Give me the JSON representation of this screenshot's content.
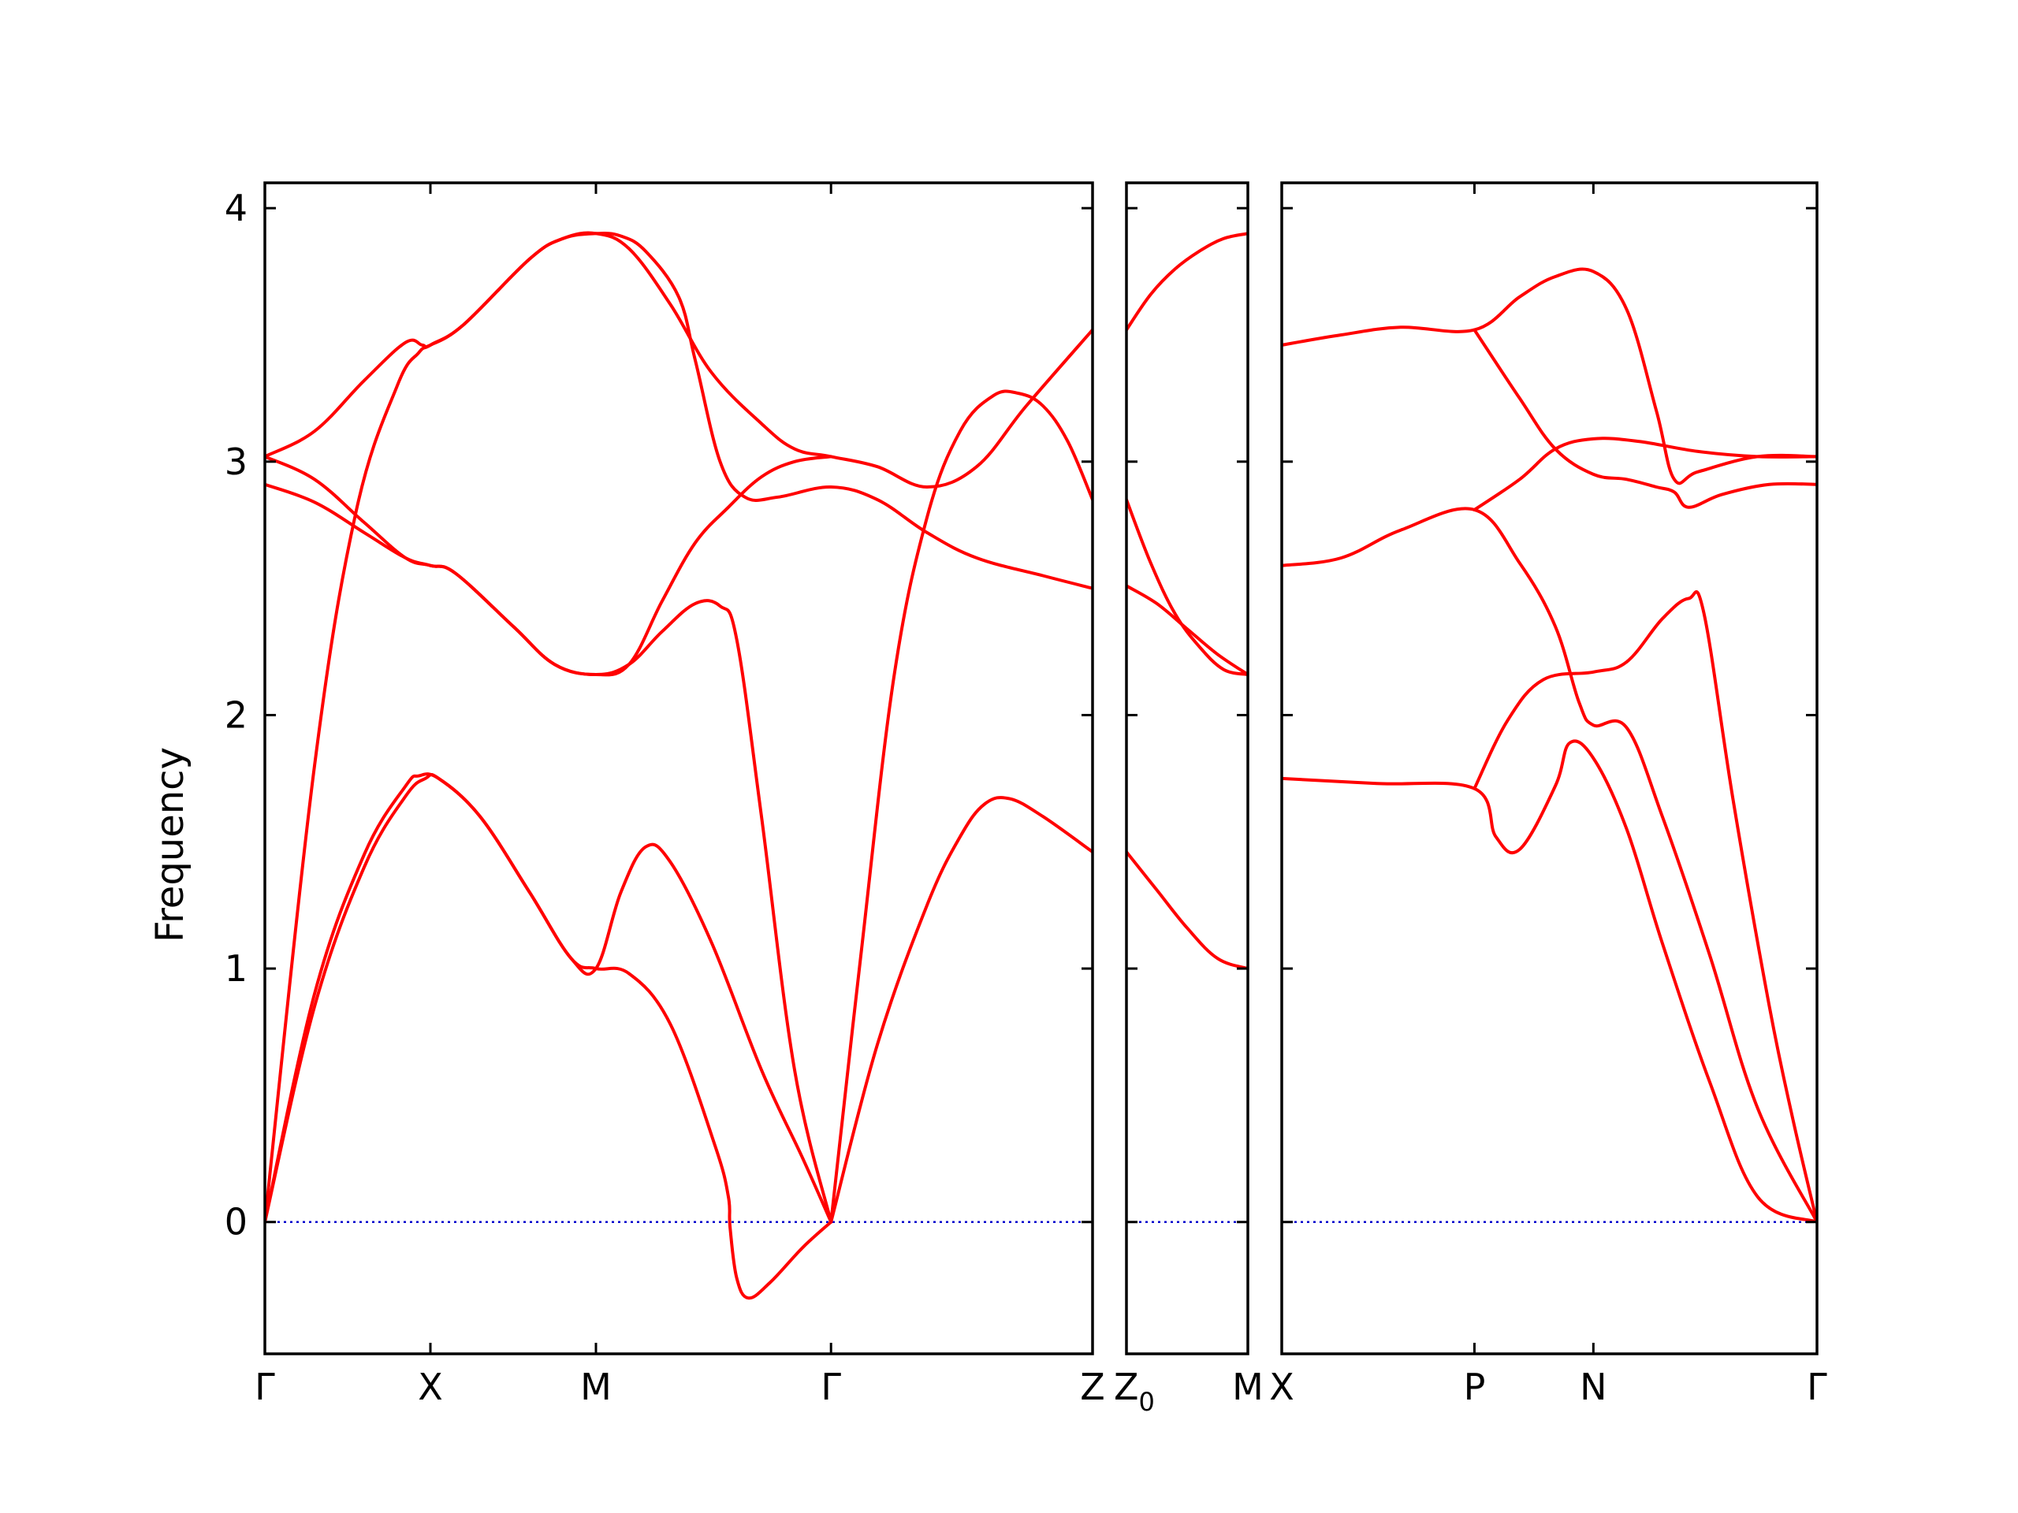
{
  "chart_data": {
    "type": "line",
    "ylabel": "Frequency",
    "ylim": [
      -0.52,
      4.1
    ],
    "yticks": [
      0,
      1,
      2,
      3,
      4
    ],
    "colors": {
      "bands": "#ff0000",
      "zero_line": "#0000cc",
      "frame": "#000000"
    },
    "panels": [
      {
        "id": "panel-1",
        "x_range": [
          0,
          5
        ],
        "xticks": [
          {
            "x": 0,
            "label": "Γ"
          },
          {
            "x": 1,
            "label": "X"
          },
          {
            "x": 2,
            "label": "M"
          },
          {
            "x": 3.42,
            "label": "Γ"
          },
          {
            "x": 5,
            "label": "Z"
          }
        ],
        "bands": [
          {
            "name": "",
            "points": [
              [
                0,
                0
              ],
              [
                0.3,
                0.85
              ],
              [
                0.6,
                1.4
              ],
              [
                0.85,
                1.68
              ],
              [
                0.97,
                1.75
              ],
              [
                1.05,
                1.75
              ],
              [
                1.3,
                1.6
              ],
              [
                1.6,
                1.3
              ],
              [
                1.85,
                1.04
              ],
              [
                2.0,
                1.0
              ],
              [
                2.2,
                0.98
              ],
              [
                2.45,
                0.78
              ],
              [
                2.72,
                0.3
              ],
              [
                2.8,
                0.1
              ],
              [
                2.81,
                -0.02
              ],
              [
                2.85,
                -0.22
              ],
              [
                2.92,
                -0.3
              ],
              [
                3.05,
                -0.24
              ],
              [
                3.25,
                -0.1
              ],
              [
                3.42,
                0
              ]
            ]
          },
          {
            "name": "",
            "points": [
              [
                0,
                0
              ],
              [
                0.3,
                0.9
              ],
              [
                0.6,
                1.45
              ],
              [
                0.85,
                1.72
              ],
              [
                0.93,
                1.76
              ],
              [
                1.05,
                1.75
              ],
              [
                1.3,
                1.6
              ],
              [
                1.6,
                1.3
              ],
              [
                1.85,
                1.04
              ],
              [
                2.0,
                1.0
              ],
              [
                2.15,
                1.3
              ],
              [
                2.3,
                1.48
              ],
              [
                2.45,
                1.42
              ],
              [
                2.7,
                1.1
              ],
              [
                3.0,
                0.6
              ],
              [
                3.25,
                0.25
              ],
              [
                3.42,
                0
              ]
            ]
          },
          {
            "name": "",
            "points": [
              [
                3.42,
                0
              ],
              [
                3.7,
                0.7
              ],
              [
                4.0,
                1.25
              ],
              [
                4.2,
                1.52
              ],
              [
                4.35,
                1.65
              ],
              [
                4.5,
                1.67
              ],
              [
                4.7,
                1.6
              ],
              [
                5.0,
                1.46
              ]
            ]
          },
          {
            "name": "",
            "points": [
              [
                0,
                0
              ],
              [
                0.3,
                1.8
              ],
              [
                0.55,
                2.8
              ],
              [
                0.8,
                3.3
              ],
              [
                0.93,
                3.43
              ],
              [
                1.0,
                3.46
              ],
              [
                1.2,
                3.54
              ],
              [
                1.6,
                3.8
              ],
              [
                1.8,
                3.88
              ],
              [
                2.0,
                3.9
              ],
              [
                2.2,
                3.84
              ],
              [
                2.45,
                3.62
              ],
              [
                2.7,
                3.35
              ],
              [
                3.0,
                3.15
              ],
              [
                3.2,
                3.05
              ],
              [
                3.42,
                3.02
              ],
              [
                3.7,
                2.98
              ],
              [
                4.0,
                2.9
              ],
              [
                4.3,
                2.98
              ],
              [
                4.6,
                3.22
              ],
              [
                5.0,
                3.52
              ]
            ]
          },
          {
            "name": "",
            "points": [
              [
                0,
                3.02
              ],
              [
                0.3,
                3.12
              ],
              [
                0.6,
                3.32
              ],
              [
                0.85,
                3.47
              ],
              [
                0.95,
                3.46
              ],
              [
                1.0,
                3.46
              ],
              [
                1.2,
                3.54
              ],
              [
                1.6,
                3.8
              ],
              [
                1.8,
                3.88
              ],
              [
                2.0,
                3.9
              ],
              [
                2.15,
                3.89
              ],
              [
                2.3,
                3.83
              ],
              [
                2.5,
                3.65
              ],
              [
                2.6,
                3.4
              ],
              [
                2.75,
                3.0
              ],
              [
                2.9,
                2.86
              ],
              [
                3.1,
                2.86
              ],
              [
                3.42,
                2.9
              ],
              [
                3.7,
                2.85
              ],
              [
                4.0,
                2.72
              ],
              [
                4.3,
                2.62
              ],
              [
                4.7,
                2.55
              ],
              [
                5.0,
                2.5
              ]
            ]
          },
          {
            "name": "",
            "points": [
              [
                3.42,
                0
              ],
              [
                3.6,
                1.05
              ],
              [
                3.8,
                2.15
              ],
              [
                4.0,
                2.78
              ],
              [
                4.2,
                3.12
              ],
              [
                4.4,
                3.26
              ],
              [
                4.55,
                3.27
              ],
              [
                4.7,
                3.22
              ],
              [
                4.85,
                3.08
              ],
              [
                5.0,
                2.85
              ]
            ]
          },
          {
            "name": "",
            "points": [
              [
                0,
                3.02
              ],
              [
                0.3,
                2.93
              ],
              [
                0.6,
                2.76
              ],
              [
                0.85,
                2.62
              ],
              [
                1.0,
                2.59
              ],
              [
                1.15,
                2.56
              ],
              [
                1.5,
                2.35
              ],
              [
                1.75,
                2.2
              ],
              [
                2.0,
                2.16
              ],
              [
                2.2,
                2.2
              ],
              [
                2.4,
                2.33
              ],
              [
                2.6,
                2.44
              ],
              [
                2.75,
                2.43
              ],
              [
                2.85,
                2.3
              ],
              [
                3.0,
                1.6
              ],
              [
                3.2,
                0.6
              ],
              [
                3.42,
                0
              ]
            ]
          },
          {
            "name": "",
            "points": [
              [
                0,
                2.91
              ],
              [
                0.3,
                2.84
              ],
              [
                0.6,
                2.72
              ],
              [
                0.85,
                2.62
              ],
              [
                1.0,
                2.59
              ],
              [
                1.15,
                2.56
              ],
              [
                1.5,
                2.35
              ],
              [
                1.75,
                2.2
              ],
              [
                2.0,
                2.16
              ],
              [
                2.2,
                2.2
              ],
              [
                2.4,
                2.45
              ],
              [
                2.6,
                2.68
              ],
              [
                2.8,
                2.82
              ],
              [
                3.0,
                2.94
              ],
              [
                3.2,
                3.0
              ],
              [
                3.42,
                3.02
              ]
            ]
          }
        ]
      },
      {
        "id": "panel-2",
        "x_range": [
          0,
          1
        ],
        "xticks": [
          {
            "x": 0,
            "label": "Z",
            "sub": "0"
          },
          {
            "x": 1,
            "label": "M"
          }
        ],
        "bands": [
          {
            "name": "",
            "points": [
              [
                0,
                3.52
              ],
              [
                0.2,
                3.66
              ],
              [
                0.4,
                3.76
              ],
              [
                0.6,
                3.83
              ],
              [
                0.8,
                3.88
              ],
              [
                1.0,
                3.9
              ]
            ]
          },
          {
            "name": "",
            "points": [
              [
                0,
                2.85
              ],
              [
                0.2,
                2.6
              ],
              [
                0.4,
                2.4
              ],
              [
                0.6,
                2.27
              ],
              [
                0.8,
                2.18
              ],
              [
                1.0,
                2.16
              ]
            ]
          },
          {
            "name": "",
            "points": [
              [
                0,
                2.51
              ],
              [
                0.25,
                2.44
              ],
              [
                0.5,
                2.34
              ],
              [
                0.75,
                2.24
              ],
              [
                1.0,
                2.16
              ]
            ]
          },
          {
            "name": "",
            "points": [
              [
                0,
                1.46
              ],
              [
                0.25,
                1.31
              ],
              [
                0.5,
                1.16
              ],
              [
                0.75,
                1.04
              ],
              [
                1.0,
                1.0
              ]
            ]
          }
        ]
      },
      {
        "id": "panel-3",
        "x_range": [
          0,
          4.5
        ],
        "xticks": [
          {
            "x": 0,
            "label": "X"
          },
          {
            "x": 1.62,
            "label": "P"
          },
          {
            "x": 2.62,
            "label": "N"
          },
          {
            "x": 4.5,
            "label": "Γ"
          }
        ],
        "bands": [
          {
            "name": "",
            "points": [
              [
                0,
                1.75
              ],
              [
                0.8,
                1.73
              ],
              [
                1.62,
                1.71
              ],
              [
                1.8,
                1.52
              ],
              [
                2.0,
                1.47
              ],
              [
                2.3,
                1.72
              ],
              [
                2.42,
                1.89
              ],
              [
                2.62,
                1.83
              ],
              [
                2.9,
                1.55
              ],
              [
                3.2,
                1.1
              ],
              [
                3.6,
                0.55
              ],
              [
                4.0,
                0.1
              ],
              [
                4.5,
                0
              ]
            ]
          },
          {
            "name": "",
            "points": [
              [
                0,
                2.59
              ],
              [
                0.5,
                2.62
              ],
              [
                1.0,
                2.73
              ],
              [
                1.62,
                2.81
              ],
              [
                2.0,
                2.6
              ],
              [
                2.3,
                2.35
              ],
              [
                2.5,
                2.05
              ],
              [
                2.62,
                1.96
              ],
              [
                2.9,
                1.95
              ],
              [
                3.2,
                1.6
              ],
              [
                3.6,
                1.05
              ],
              [
                4.0,
                0.45
              ],
              [
                4.5,
                0
              ]
            ]
          },
          {
            "name": "",
            "points": [
              [
                0,
                3.46
              ],
              [
                0.5,
                3.5
              ],
              [
                1.0,
                3.53
              ],
              [
                1.62,
                3.52
              ],
              [
                2.0,
                3.65
              ],
              [
                2.3,
                3.73
              ],
              [
                2.62,
                3.75
              ],
              [
                2.9,
                3.6
              ],
              [
                3.15,
                3.2
              ],
              [
                3.3,
                2.93
              ],
              [
                3.5,
                2.96
              ],
              [
                4.0,
                3.02
              ],
              [
                4.5,
                3.02
              ]
            ]
          },
          {
            "name": "",
            "points": [
              [
                1.62,
                3.52
              ],
              [
                2.0,
                3.25
              ],
              [
                2.3,
                3.05
              ],
              [
                2.62,
                2.95
              ],
              [
                2.9,
                2.93
              ],
              [
                3.15,
                2.9
              ],
              [
                3.3,
                2.88
              ],
              [
                3.42,
                2.82
              ],
              [
                3.7,
                2.87
              ],
              [
                4.1,
                2.91
              ],
              [
                4.5,
                2.91
              ]
            ]
          },
          {
            "name": "",
            "points": [
              [
                1.62,
                2.81
              ],
              [
                2.0,
                2.93
              ],
              [
                2.3,
                3.05
              ],
              [
                2.62,
                3.09
              ],
              [
                3.0,
                3.08
              ],
              [
                3.5,
                3.04
              ],
              [
                4.0,
                3.02
              ],
              [
                4.5,
                3.02
              ]
            ]
          },
          {
            "name": "",
            "points": [
              [
                1.62,
                1.71
              ],
              [
                1.9,
                1.98
              ],
              [
                2.2,
                2.14
              ],
              [
                2.62,
                2.17
              ],
              [
                2.9,
                2.21
              ],
              [
                3.2,
                2.38
              ],
              [
                3.42,
                2.46
              ],
              [
                3.55,
                2.4
              ],
              [
                3.8,
                1.65
              ],
              [
                4.1,
                0.85
              ],
              [
                4.3,
                0.4
              ],
              [
                4.5,
                0
              ]
            ]
          }
        ]
      }
    ]
  }
}
